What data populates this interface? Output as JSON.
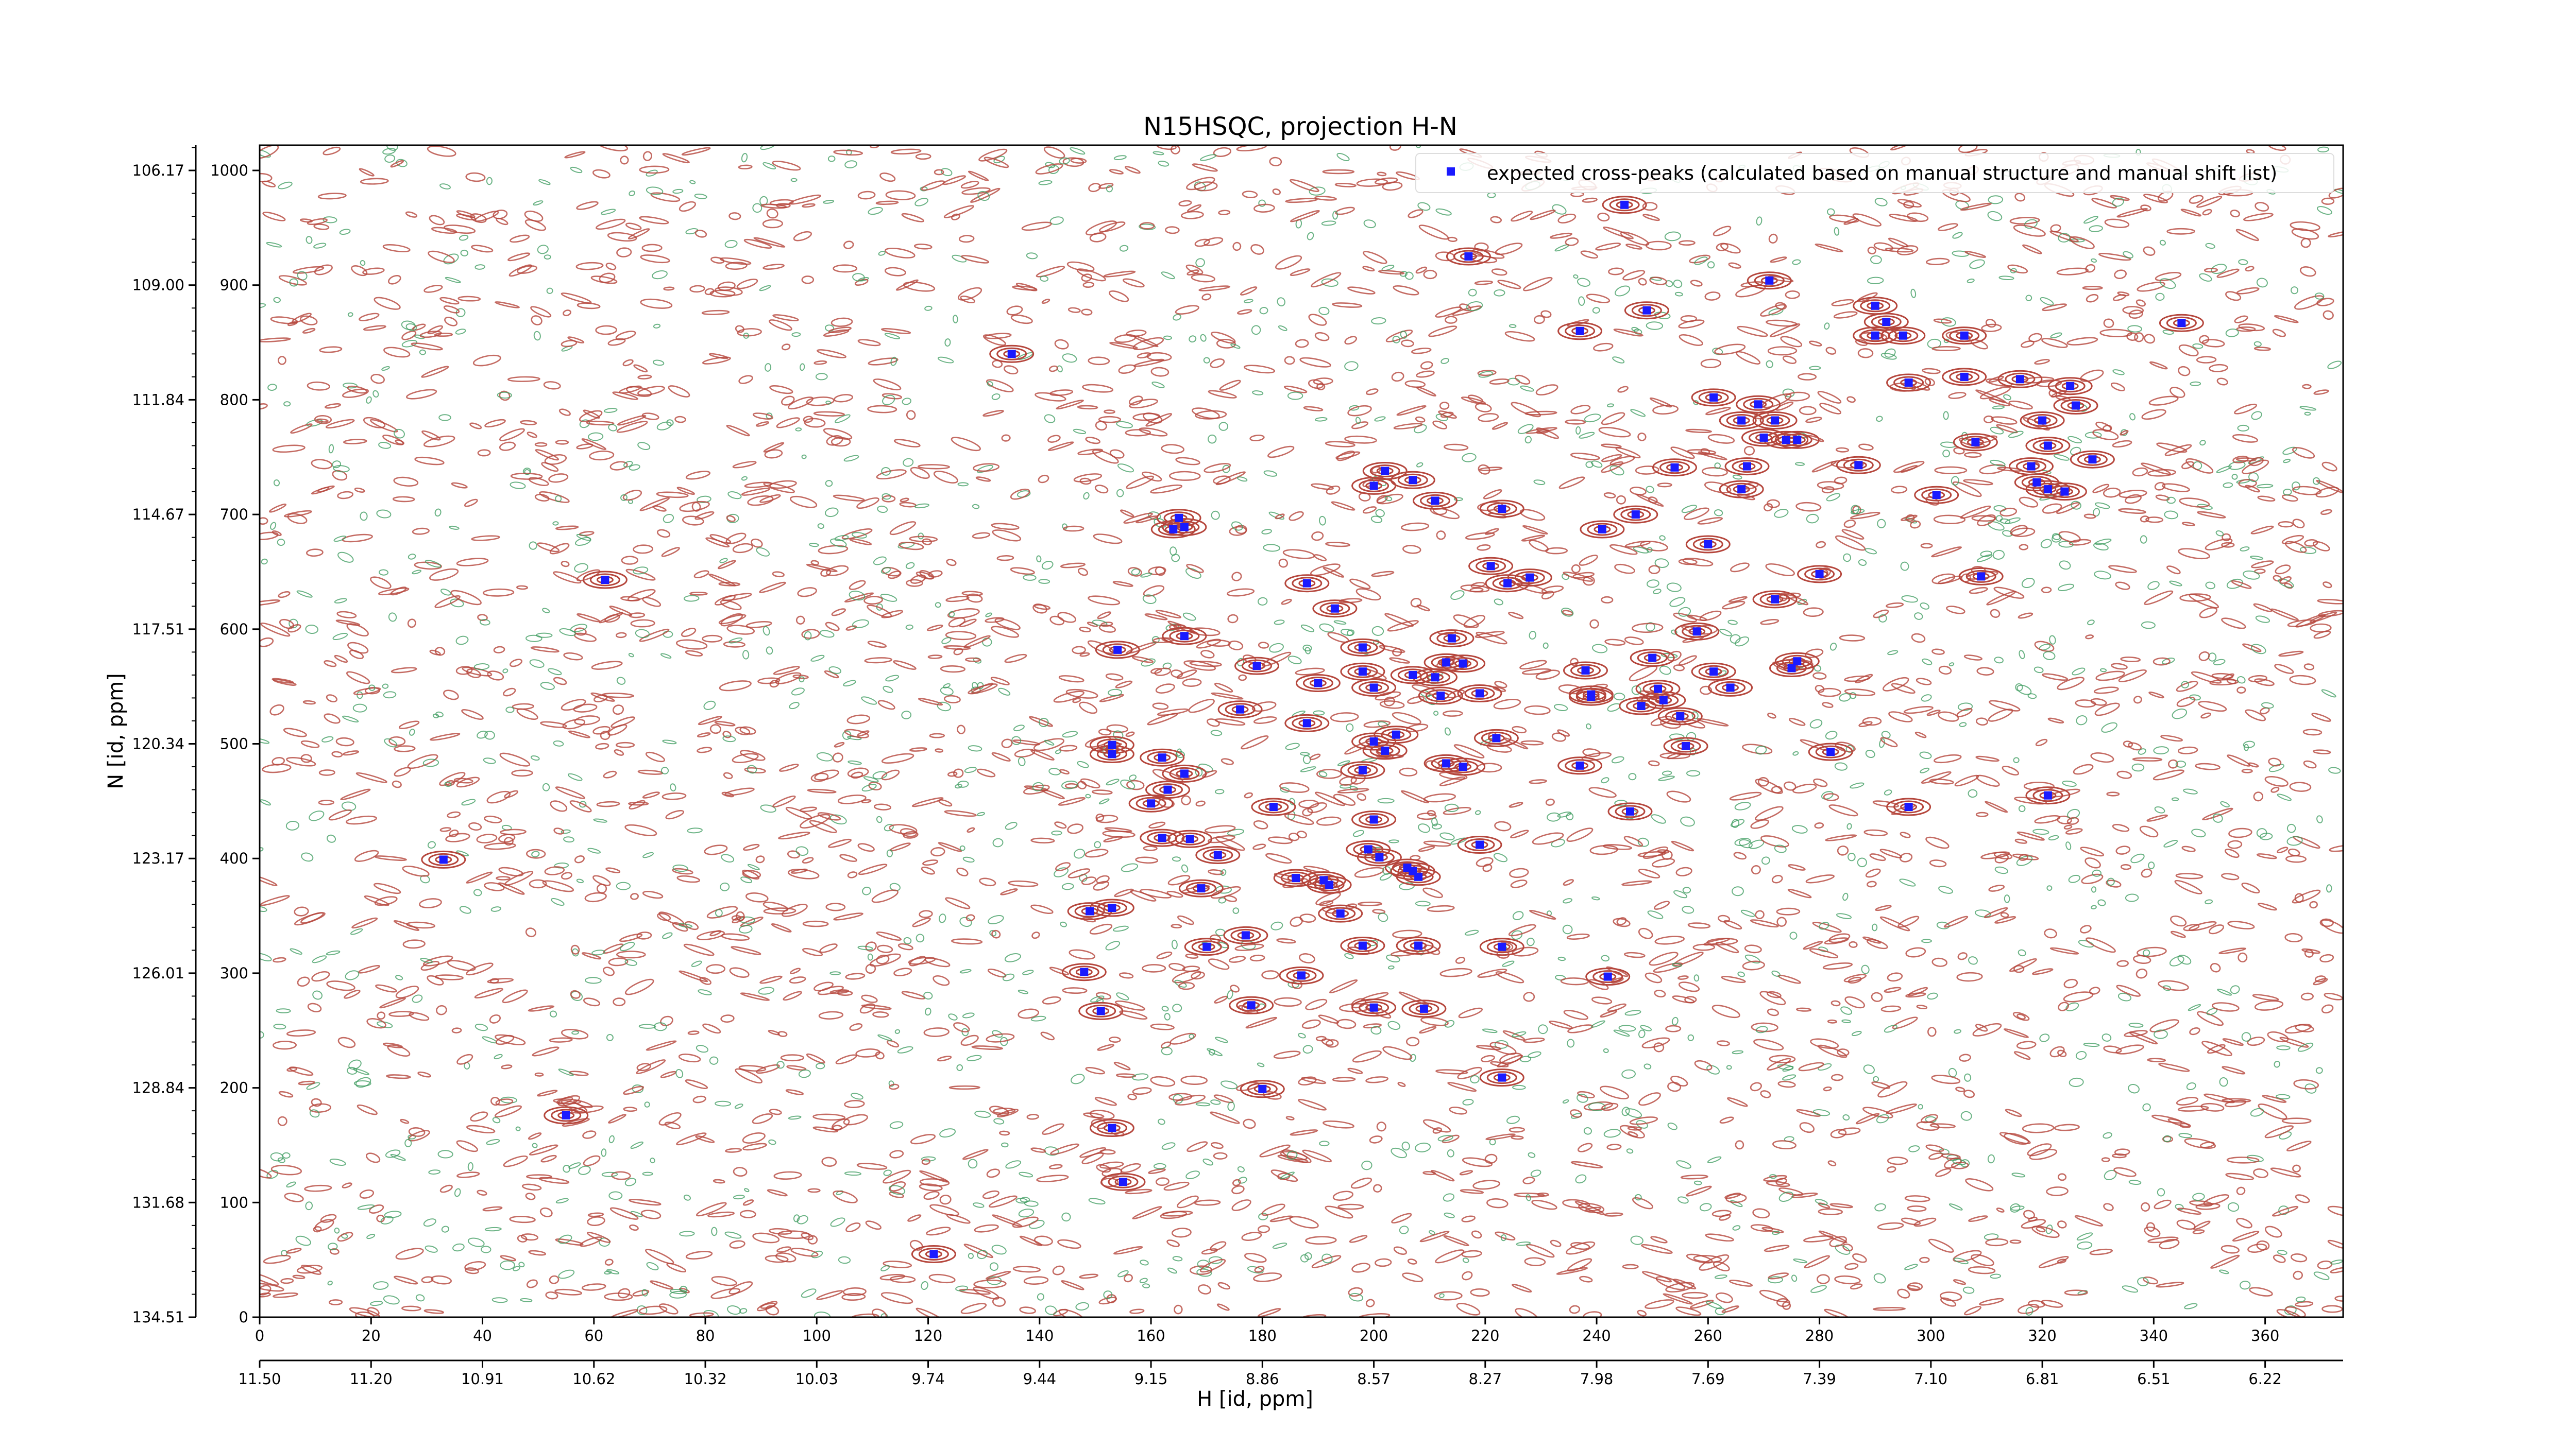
{
  "chart_data": {
    "type": "scatter",
    "title": "N15HSQC, projection H-N",
    "xlabel": "H [id, ppm]",
    "ylabel": "N [id, ppm]",
    "x_index_ticks": [
      "0",
      "20",
      "40",
      "60",
      "80",
      "100",
      "120",
      "140",
      "160",
      "180",
      "200",
      "220",
      "240",
      "260",
      "280",
      "300",
      "320",
      "340",
      "360"
    ],
    "x_ppm_ticks": [
      "11.50",
      "11.20",
      "10.91",
      "10.62",
      "10.32",
      "10.03",
      "9.74",
      "9.44",
      "9.15",
      "8.86",
      "8.57",
      "8.27",
      "7.98",
      "7.69",
      "7.39",
      "7.10",
      "6.81",
      "6.51",
      "6.22"
    ],
    "y_index_ticks": [
      "0",
      "100",
      "200",
      "300",
      "400",
      "500",
      "600",
      "700",
      "800",
      "900",
      "1000"
    ],
    "y_ppm_ticks": [
      "134.51",
      "131.68",
      "128.84",
      "126.01",
      "123.17",
      "120.34",
      "117.51",
      "114.67",
      "111.84",
      "109.00",
      "106.17"
    ],
    "xlim": [
      0,
      374
    ],
    "ylim": [
      0,
      1022
    ],
    "legend": {
      "label": "expected cross-peaks (calculated based on manual structure and manual shift list)",
      "position": "top-right"
    },
    "colors": {
      "marker": "#1a1aff",
      "positive_contour": "#b5463c",
      "negative_contour": "#3a9a5c"
    },
    "series": [
      {
        "name": "expected cross-peaks (calculated based on manual structure and manual shift list)",
        "points": [
          [
            245,
            970
          ],
          [
            217,
            925
          ],
          [
            271,
            904
          ],
          [
            249,
            878
          ],
          [
            237,
            860
          ],
          [
            135,
            840
          ],
          [
            290,
            882
          ],
          [
            292,
            868
          ],
          [
            290,
            856
          ],
          [
            295,
            856
          ],
          [
            296,
            815
          ],
          [
            306,
            856
          ],
          [
            345,
            867
          ],
          [
            306,
            820
          ],
          [
            316,
            818
          ],
          [
            325,
            812
          ],
          [
            326,
            795
          ],
          [
            261,
            802
          ],
          [
            269,
            796
          ],
          [
            266,
            782
          ],
          [
            272,
            782
          ],
          [
            270,
            767
          ],
          [
            274,
            765
          ],
          [
            276,
            765
          ],
          [
            267,
            742
          ],
          [
            266,
            722
          ],
          [
            254,
            741
          ],
          [
            287,
            743
          ],
          [
            308,
            763
          ],
          [
            320,
            782
          ],
          [
            321,
            760
          ],
          [
            318,
            742
          ],
          [
            319,
            728
          ],
          [
            321,
            722
          ],
          [
            324,
            720
          ],
          [
            329,
            748
          ],
          [
            301,
            717
          ],
          [
            200,
            725
          ],
          [
            202,
            738
          ],
          [
            207,
            730
          ],
          [
            211,
            712
          ],
          [
            223,
            705
          ],
          [
            247,
            700
          ],
          [
            241,
            687
          ],
          [
            165,
            697
          ],
          [
            166,
            689
          ],
          [
            164,
            687
          ],
          [
            260,
            674
          ],
          [
            221,
            655
          ],
          [
            224,
            640
          ],
          [
            228,
            645
          ],
          [
            188,
            640
          ],
          [
            193,
            618
          ],
          [
            280,
            648
          ],
          [
            272,
            626
          ],
          [
            309,
            646
          ],
          [
            62,
            643
          ],
          [
            154,
            582
          ],
          [
            166,
            594
          ],
          [
            179,
            568
          ],
          [
            190,
            553
          ],
          [
            198,
            584
          ],
          [
            198,
            563
          ],
          [
            213,
            571
          ],
          [
            214,
            592
          ],
          [
            211,
            558
          ],
          [
            216,
            570
          ],
          [
            207,
            560
          ],
          [
            200,
            549
          ],
          [
            238,
            564
          ],
          [
            239,
            543
          ],
          [
            239,
            541
          ],
          [
            250,
            575
          ],
          [
            251,
            548
          ],
          [
            258,
            598
          ],
          [
            261,
            563
          ],
          [
            264,
            549
          ],
          [
            275,
            566
          ],
          [
            276,
            572
          ],
          [
            176,
            530
          ],
          [
            188,
            518
          ],
          [
            200,
            502
          ],
          [
            202,
            494
          ],
          [
            204,
            508
          ],
          [
            212,
            542
          ],
          [
            219,
            544
          ],
          [
            222,
            505
          ],
          [
            248,
            533
          ],
          [
            252,
            538
          ],
          [
            255,
            524
          ],
          [
            256,
            498
          ],
          [
            282,
            493
          ],
          [
            153,
            499
          ],
          [
            153,
            491
          ],
          [
            162,
            488
          ],
          [
            166,
            474
          ],
          [
            163,
            460
          ],
          [
            160,
            448
          ],
          [
            182,
            445
          ],
          [
            200,
            434
          ],
          [
            198,
            477
          ],
          [
            213,
            483
          ],
          [
            216,
            480
          ],
          [
            237,
            481
          ],
          [
            246,
            441
          ],
          [
            296,
            445
          ],
          [
            321,
            455
          ],
          [
            33,
            399
          ],
          [
            162,
            418
          ],
          [
            167,
            417
          ],
          [
            172,
            403
          ],
          [
            199,
            408
          ],
          [
            201,
            401
          ],
          [
            206,
            392
          ],
          [
            207,
            389
          ],
          [
            208,
            384
          ],
          [
            219,
            412
          ],
          [
            186,
            383
          ],
          [
            191,
            381
          ],
          [
            192,
            377
          ],
          [
            169,
            374
          ],
          [
            149,
            354
          ],
          [
            153,
            357
          ],
          [
            194,
            352
          ],
          [
            170,
            323
          ],
          [
            177,
            333
          ],
          [
            198,
            324
          ],
          [
            223,
            323
          ],
          [
            208,
            324
          ],
          [
            187,
            298
          ],
          [
            242,
            297
          ],
          [
            148,
            301
          ],
          [
            151,
            267
          ],
          [
            178,
            272
          ],
          [
            200,
            270
          ],
          [
            209,
            269
          ],
          [
            223,
            209
          ],
          [
            180,
            199
          ],
          [
            55,
            176
          ],
          [
            153,
            165
          ],
          [
            155,
            118
          ],
          [
            121,
            55
          ]
        ]
      }
    ]
  }
}
